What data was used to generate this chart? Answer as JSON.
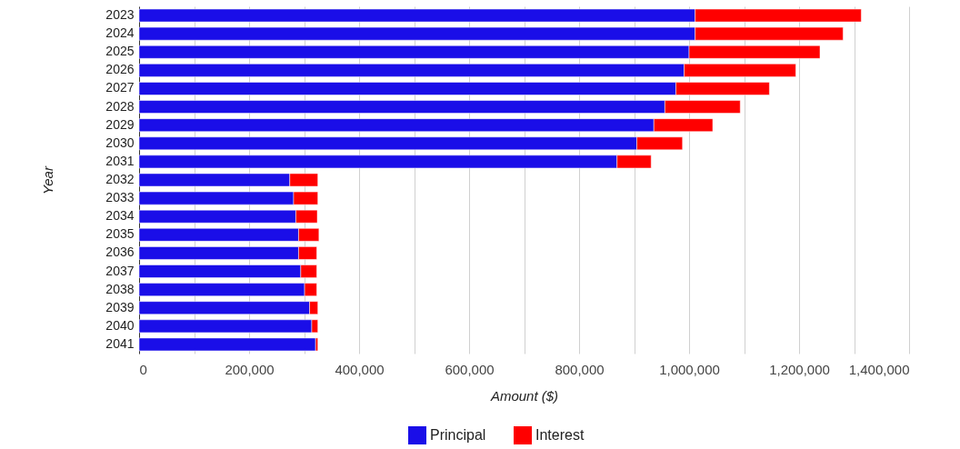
{
  "chart_data": {
    "type": "bar",
    "orientation": "horizontal",
    "stacked": true,
    "xlabel": "Amount ($)",
    "ylabel": "Year",
    "categories": [
      "2023",
      "2024",
      "2025",
      "2026",
      "2027",
      "2028",
      "2029",
      "2030",
      "2031",
      "2032",
      "2033",
      "2034",
      "2035",
      "2036",
      "2037",
      "2038",
      "2039",
      "2040",
      "2041"
    ],
    "series": [
      {
        "name": "Principal",
        "color": "#1a0ee8",
        "values": [
          1011000,
          1011000,
          1000000,
          991000,
          976000,
          956000,
          936000,
          905000,
          869000,
          274000,
          281000,
          285000,
          290000,
          290000,
          294000,
          301000,
          310000,
          314000,
          321000
        ]
      },
      {
        "name": "Interest",
        "color": "#ff0000",
        "values": [
          302000,
          269000,
          238000,
          203000,
          170000,
          137000,
          107000,
          83000,
          62000,
          51000,
          44000,
          39000,
          37000,
          33000,
          29000,
          22000,
          15000,
          11000,
          4000
        ]
      }
    ],
    "xlim": [
      0,
      1400000
    ],
    "xticks": [
      0,
      {
        "value": 100000,
        "label": null
      },
      {
        "value": 200000,
        "label": "200,000"
      },
      {
        "value": 300000,
        "label": null
      },
      {
        "value": 400000,
        "label": "400,000"
      },
      {
        "value": 500000,
        "label": null
      },
      {
        "value": 600000,
        "label": "600,000"
      },
      {
        "value": 700000,
        "label": null
      },
      {
        "value": 800000,
        "label": "800,000"
      },
      {
        "value": 900000,
        "label": null
      },
      {
        "value": 1000000,
        "label": "1,000,000"
      },
      {
        "value": 1100000,
        "label": null
      },
      {
        "value": 1200000,
        "label": "1,200,000"
      },
      {
        "value": 1300000,
        "label": null
      },
      {
        "value": 1400000,
        "label": "1,400,000"
      }
    ],
    "grid": "x",
    "legend": "bottom"
  }
}
